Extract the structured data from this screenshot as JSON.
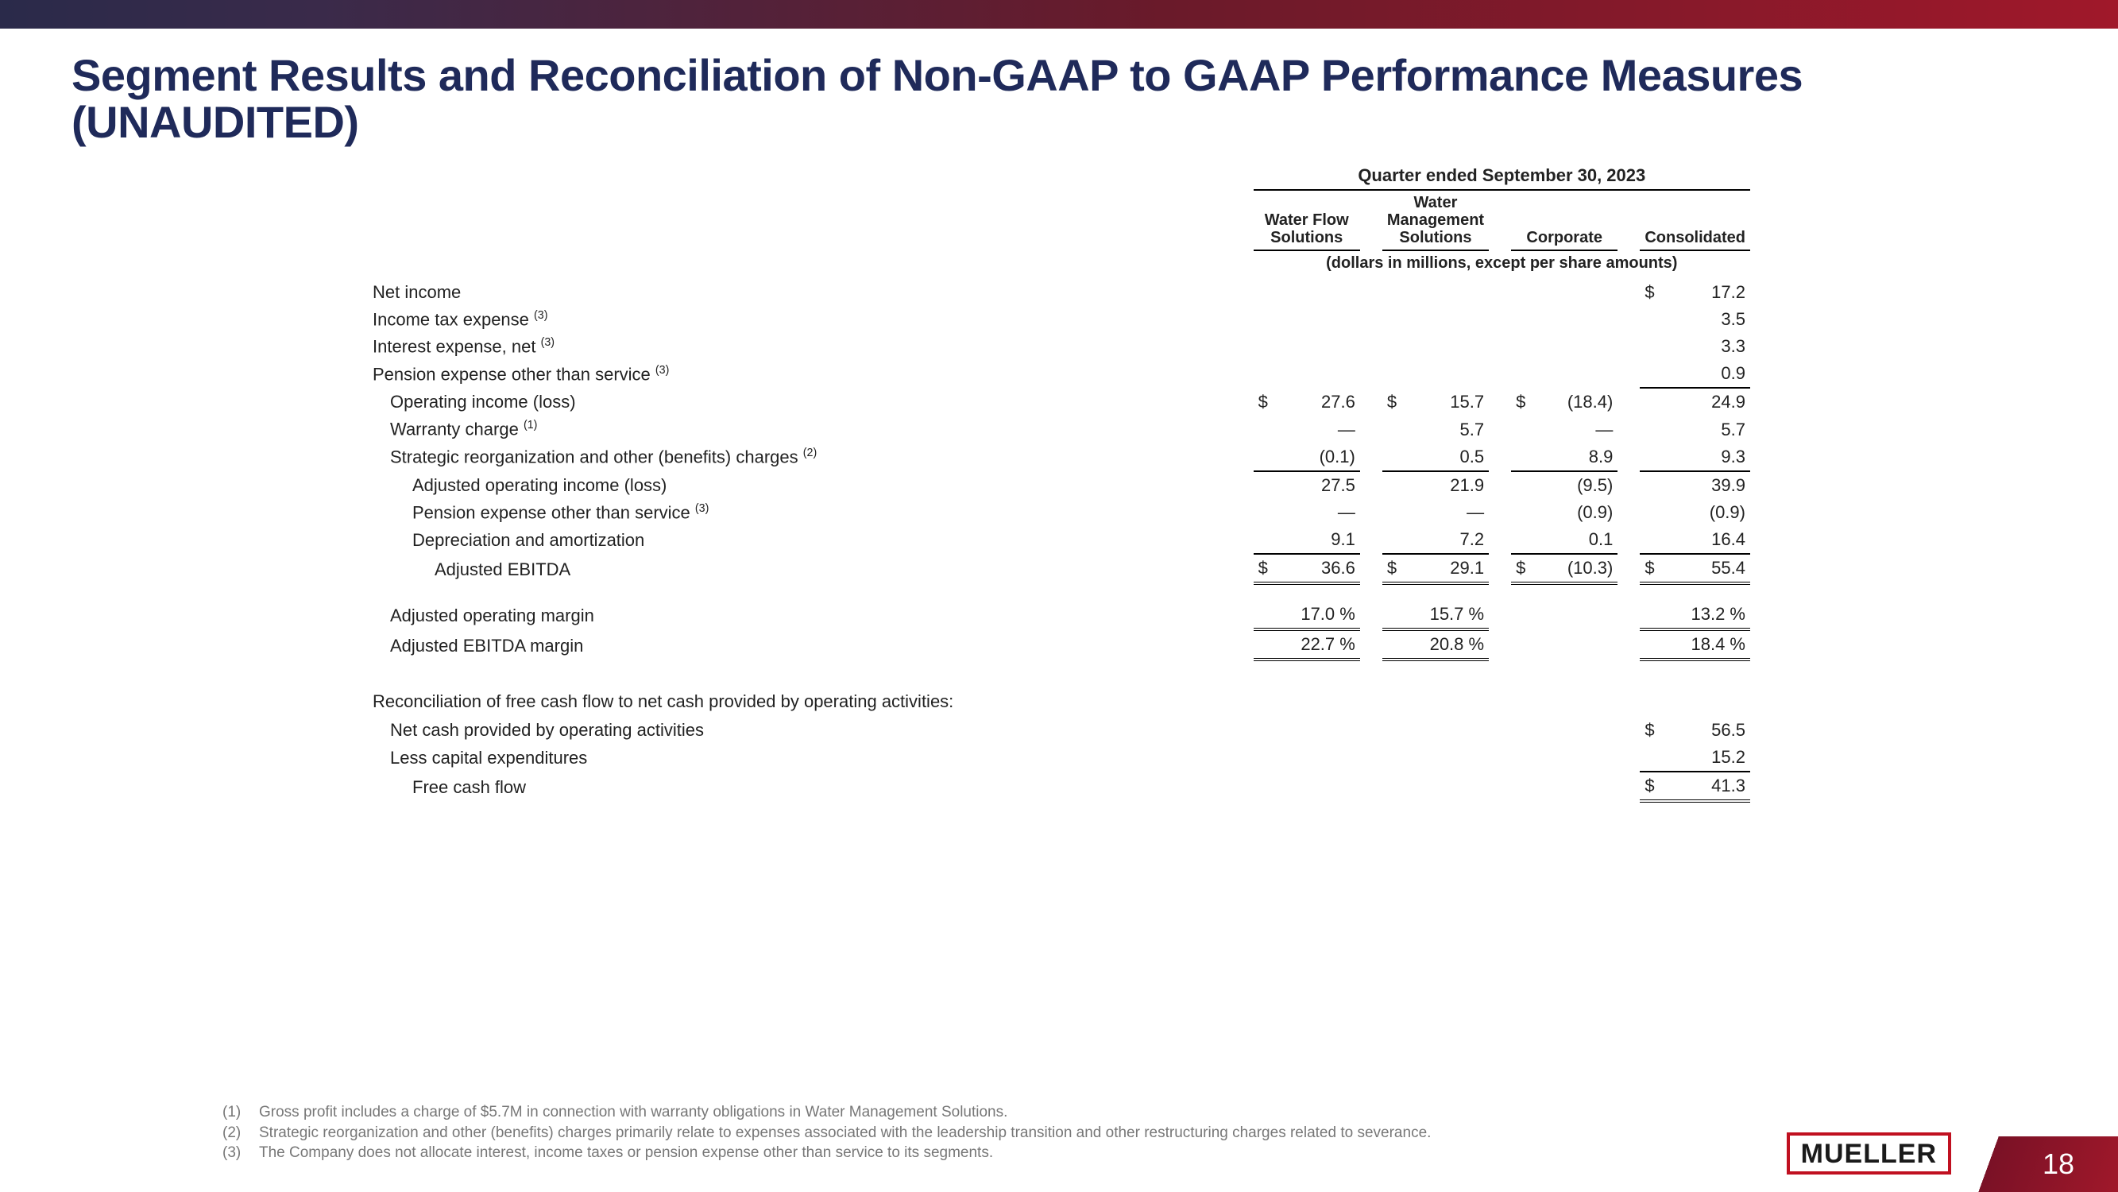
{
  "title": "Segment Results and Reconciliation of Non-GAAP to GAAP Performance Measures (UNAUDITED)",
  "period": "Quarter ended September 30, 2023",
  "units": "(dollars in millions, except per share amounts)",
  "columns": [
    "Water Flow Solutions",
    "Water Management Solutions",
    "Corporate",
    "Consolidated"
  ],
  "rows": {
    "net_income": {
      "label": "Net income",
      "sup": "",
      "wfs": "",
      "wms": "",
      "corp": "",
      "cons": "17.2",
      "sym_wfs": "",
      "sym_wms": "",
      "sym_corp": "",
      "sym_cons": "$"
    },
    "income_tax": {
      "label": "Income tax expense",
      "sup": "(3)",
      "wfs": "",
      "wms": "",
      "corp": "",
      "cons": "3.5"
    },
    "interest": {
      "label": "Interest expense, net",
      "sup": "(3)",
      "wfs": "",
      "wms": "",
      "corp": "",
      "cons": "3.3"
    },
    "pension1": {
      "label": "Pension expense other than service",
      "sup": "(3)",
      "wfs": "",
      "wms": "",
      "corp": "",
      "cons": "0.9"
    },
    "op_income": {
      "label": "Operating income (loss)",
      "sup": "",
      "wfs": "27.6",
      "wms": "15.7",
      "corp": "(18.4)",
      "cons": "24.9",
      "sym_wfs": "$",
      "sym_wms": "$",
      "sym_corp": "$"
    },
    "warranty": {
      "label": "Warranty charge",
      "sup": "(1)",
      "wfs": "—",
      "wms": "5.7",
      "corp": "—",
      "cons": "5.7"
    },
    "strategic": {
      "label": "Strategic reorganization and other (benefits) charges",
      "sup": "(2)",
      "wfs": "(0.1)",
      "wms": "0.5",
      "corp": "8.9",
      "cons": "9.3"
    },
    "adj_op_income": {
      "label": "Adjusted operating income (loss)",
      "sup": "",
      "wfs": "27.5",
      "wms": "21.9",
      "corp": "(9.5)",
      "cons": "39.9"
    },
    "pension2": {
      "label": "Pension expense other than service",
      "sup": "(3)",
      "wfs": "—",
      "wms": "—",
      "corp": "(0.9)",
      "cons": "(0.9)"
    },
    "dep_amort": {
      "label": "Depreciation and amortization",
      "sup": "",
      "wfs": "9.1",
      "wms": "7.2",
      "corp": "0.1",
      "cons": "16.4"
    },
    "adj_ebitda": {
      "label": "Adjusted EBITDA",
      "sup": "",
      "wfs": "36.6",
      "wms": "29.1",
      "corp": "(10.3)",
      "cons": "55.4",
      "sym_wfs": "$",
      "sym_wms": "$",
      "sym_corp": "$",
      "sym_cons": "$"
    },
    "adj_op_margin": {
      "label": "Adjusted operating margin",
      "sup": "",
      "wfs": "17.0 %",
      "wms": "15.7 %",
      "corp": "",
      "cons": "13.2 %"
    },
    "adj_ebitda_margin": {
      "label": "Adjusted EBITDA margin",
      "sup": "",
      "wfs": "22.7 %",
      "wms": "20.8 %",
      "corp": "",
      "cons": "18.4 %"
    }
  },
  "fcf_section_label": "Reconciliation of free cash flow to net cash provided by operating activities:",
  "fcf": {
    "op_cash": {
      "label": "Net cash provided by operating activities",
      "cons": "56.5",
      "sym_cons": "$"
    },
    "capex": {
      "label": "Less capital expenditures",
      "cons": "15.2"
    },
    "free_cash": {
      "label": "Free cash flow",
      "cons": "41.3",
      "sym_cons": "$"
    }
  },
  "footnotes": [
    {
      "n": "(1)",
      "t": "Gross profit includes a charge of $5.7M in connection with warranty obligations in Water Management Solutions."
    },
    {
      "n": "(2)",
      "t": "Strategic reorganization and other (benefits) charges primarily relate to expenses associated with the leadership transition and other restructuring charges related to severance."
    },
    {
      "n": "(3)",
      "t": "The Company does not allocate interest, income taxes or pension expense other than service to its segments."
    }
  ],
  "logo": "MUELLER",
  "page_number": "18"
}
